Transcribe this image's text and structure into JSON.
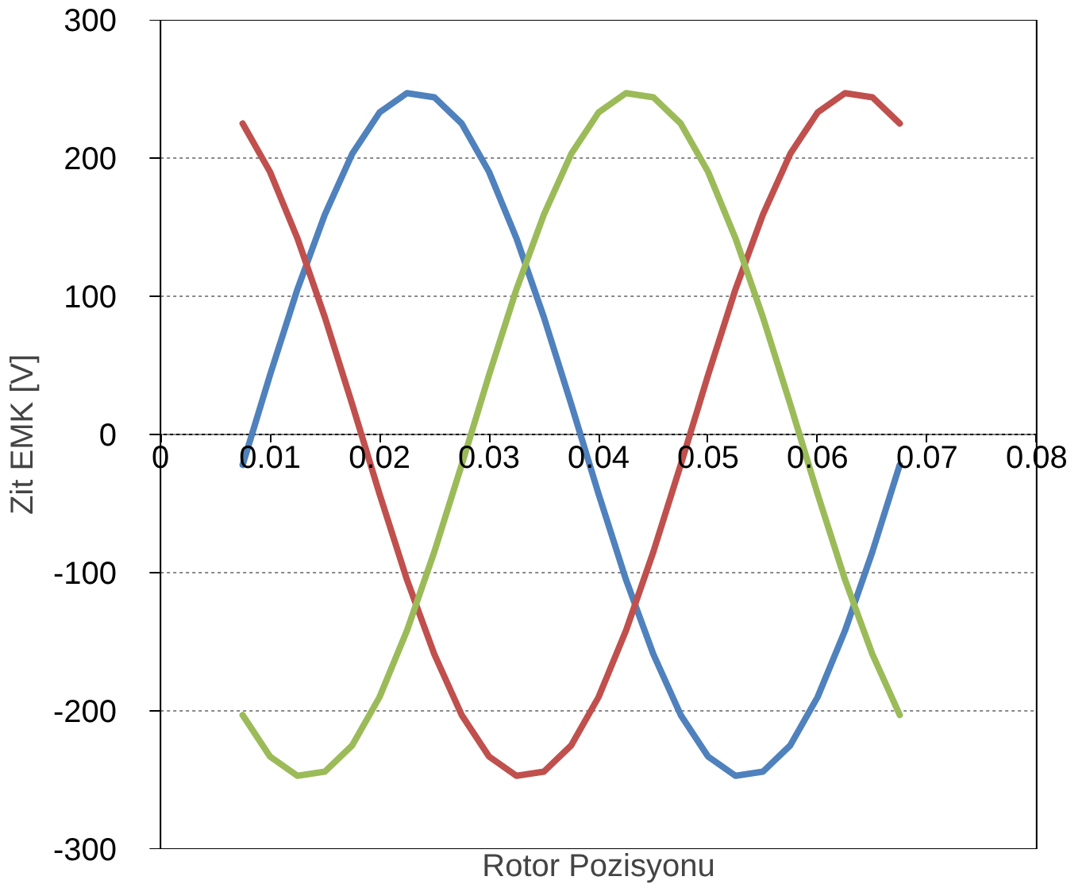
{
  "chart_data": {
    "type": "line",
    "xlabel": "Rotor Pozisyonu",
    "ylabel": "Zit EMK [V]",
    "x": [
      0.0075,
      0.01,
      0.0125,
      0.015,
      0.0175,
      0.02,
      0.0225,
      0.025,
      0.0275,
      0.03,
      0.0325,
      0.035,
      0.0375,
      0.04,
      0.0425,
      0.045,
      0.0475,
      0.05,
      0.0525,
      0.055,
      0.0575,
      0.06,
      0.0625,
      0.065,
      0.0675
    ],
    "series": [
      {
        "color": "#4f81bd",
        "values": [
          -22,
          43,
          105,
          159,
          203,
          233,
          247,
          244,
          225,
          190,
          142,
          85,
          22,
          -43,
          -105,
          -159,
          -203,
          -233,
          -247,
          -244,
          -225,
          -190,
          -142,
          -85,
          -22
        ]
      },
      {
        "color": "#c0504d",
        "values": [
          225,
          190,
          142,
          85,
          22,
          -43,
          -105,
          -159,
          -203,
          -233,
          -247,
          -244,
          -225,
          -190,
          -142,
          -85,
          -22,
          43,
          105,
          159,
          203,
          233,
          247,
          244,
          225
        ]
      },
      {
        "color": "#9bbb59",
        "values": [
          -203,
          -233,
          -247,
          -244,
          -225,
          -190,
          -142,
          -85,
          -22,
          43,
          105,
          159,
          203,
          233,
          247,
          244,
          225,
          190,
          142,
          85,
          22,
          -43,
          -105,
          -159,
          -203
        ]
      }
    ],
    "xlim": [
      0,
      0.08
    ],
    "xticks": [
      0,
      0.01,
      0.02,
      0.03,
      0.04,
      0.05,
      0.06,
      0.07,
      0.08
    ],
    "ylim": [
      -300,
      300
    ],
    "yticks": [
      -300,
      -200,
      -100,
      0,
      100,
      200,
      300
    ],
    "grid": "y",
    "marker": "none",
    "line_style": "solid"
  }
}
